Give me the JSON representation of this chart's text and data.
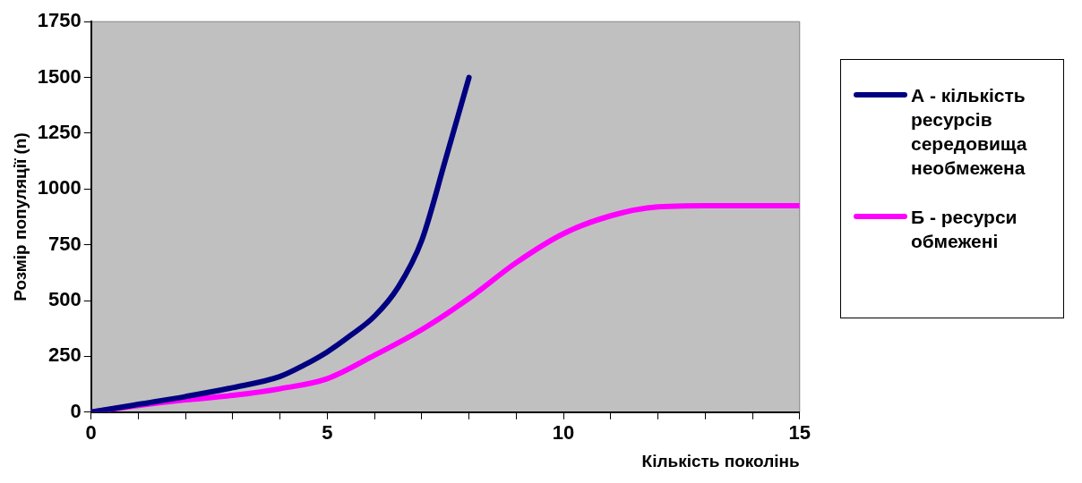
{
  "chart_data": {
    "type": "line",
    "xlabel": "Кількість поколінь",
    "ylabel": "Розмір популяції (n)",
    "xlim": [
      0,
      15
    ],
    "xticks": [
      0,
      {
        "value": 1,
        "label": null
      },
      {
        "value": 2,
        "label": null
      },
      {
        "value": 3,
        "label": null
      },
      {
        "value": 4,
        "label": null
      },
      5,
      {
        "value": 6,
        "label": null
      },
      {
        "value": 7,
        "label": null
      },
      {
        "value": 8,
        "label": null
      },
      {
        "value": 9,
        "label": null
      },
      10,
      {
        "value": 11,
        "label": null
      },
      {
        "value": 12,
        "label": null
      },
      {
        "value": 13,
        "label": null
      },
      {
        "value": 14,
        "label": null
      },
      15
    ],
    "ylim": [
      0,
      1750
    ],
    "yticks": [
      0,
      250,
      500,
      750,
      1000,
      1250,
      1500,
      1750
    ],
    "grid": false,
    "legend": "right",
    "marker": "none",
    "line_style": "solid",
    "series": [
      {
        "name": "А - кількість ресурсів середовища необмежена",
        "color": "#000080",
        "x": [
          0,
          1,
          2,
          3,
          4,
          4.5,
          5,
          5.5,
          6,
          6.5,
          7,
          7.5,
          8
        ],
        "values": [
          0,
          35,
          70,
          110,
          160,
          210,
          270,
          345,
          430,
          560,
          770,
          1130,
          1500
        ]
      },
      {
        "name": "Б - ресурси обмежені",
        "color": "#ff00ff",
        "x": [
          0,
          1,
          2,
          3,
          4,
          5,
          6,
          7,
          8,
          9,
          10,
          11,
          12,
          13,
          14,
          15
        ],
        "values": [
          0,
          30,
          55,
          75,
          105,
          150,
          255,
          370,
          510,
          670,
          800,
          880,
          920,
          925,
          925,
          925
        ]
      }
    ]
  }
}
